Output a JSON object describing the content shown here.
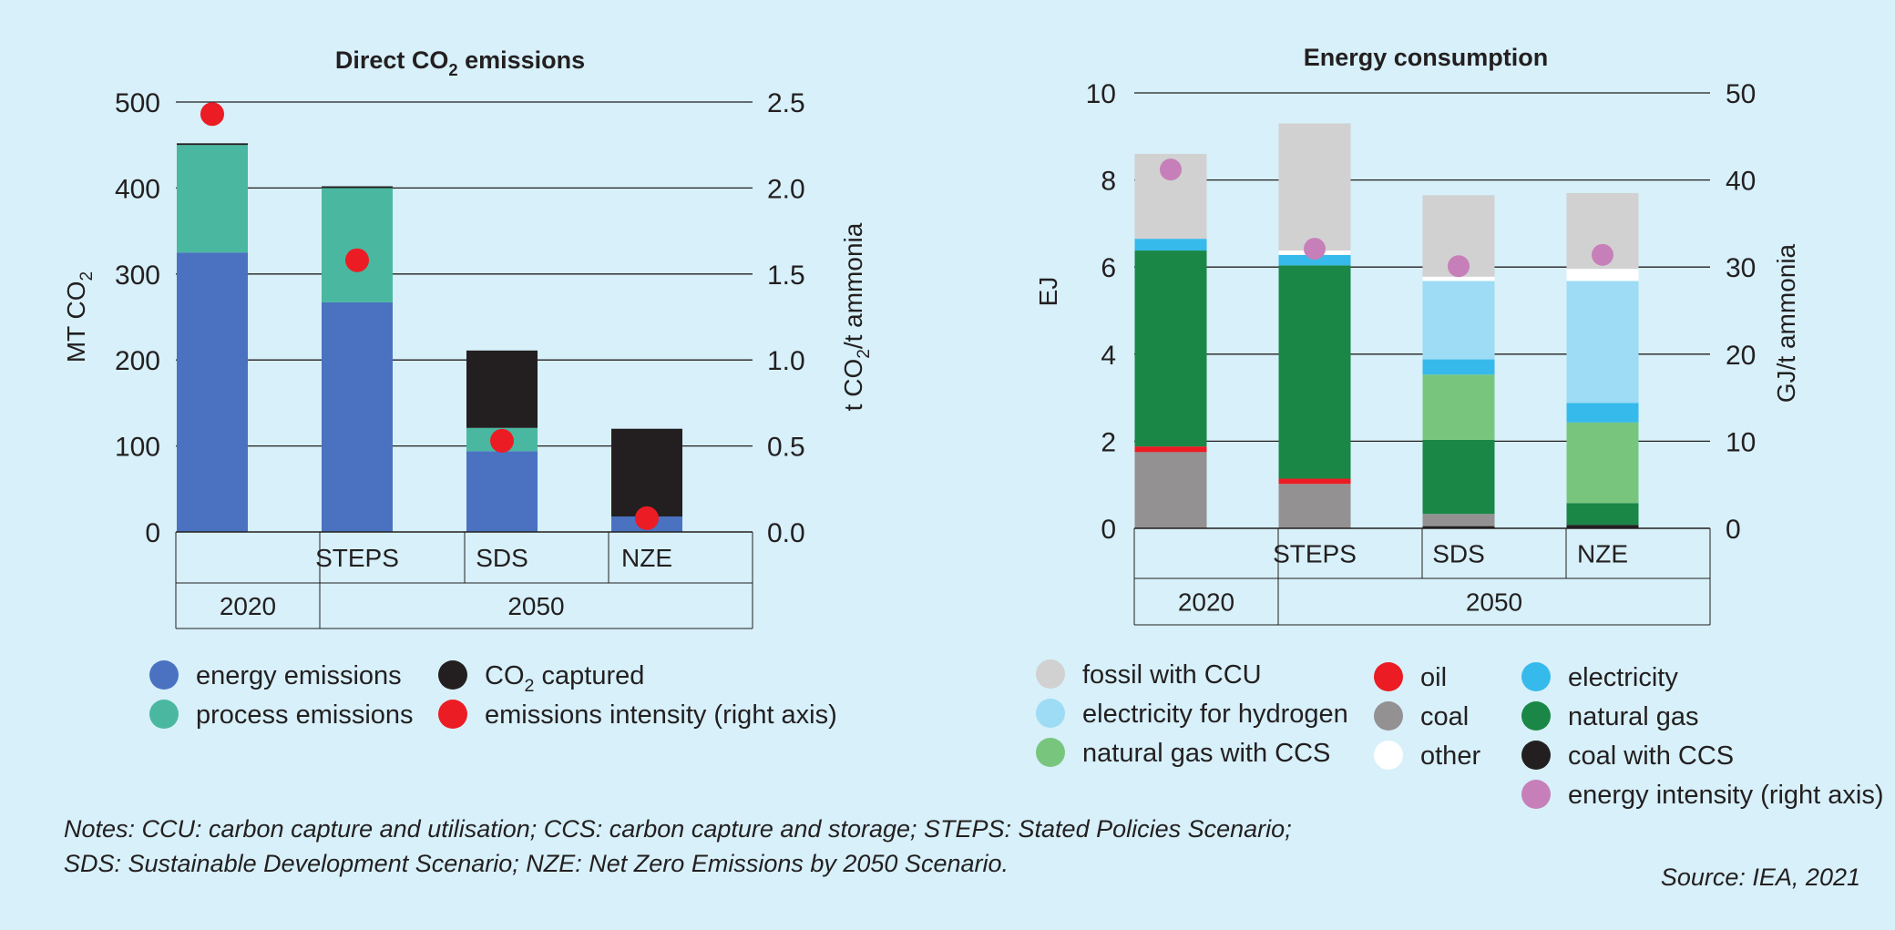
{
  "chart_data": [
    {
      "type": "bar",
      "title": "Direct CO2 emissions",
      "title_parts": {
        "main": "Direct CO",
        "sub": "2",
        "tail": " emissions"
      },
      "ylabel": "MT CO2",
      "ylabel_parts": {
        "main": "MT CO",
        "sub": "2"
      },
      "ylim": [
        0,
        500
      ],
      "yticks": [
        0,
        100,
        200,
        300,
        400,
        500
      ],
      "y2label": "t CO2/t ammonia",
      "y2label_parts": {
        "main": "t CO",
        "sub": "2",
        "tail": "/t ammonia"
      },
      "y2lim": [
        0,
        2.5
      ],
      "y2ticks": [
        "0.0",
        "0.5",
        "1.0",
        "1.5",
        "2.0",
        "2.5"
      ],
      "categories": [
        "",
        "STEPS",
        "SDS",
        "NZE"
      ],
      "groups": [
        {
          "label": "2020",
          "span": 1
        },
        {
          "label": "2050",
          "span": 3
        }
      ],
      "stacked": true,
      "series": [
        {
          "name": "energy emissions",
          "color": "#4a72c1",
          "values": [
            325,
            267,
            94,
            18
          ]
        },
        {
          "name": "process emissions",
          "color": "#4ab8a0",
          "values": [
            125,
            133,
            27,
            0
          ]
        },
        {
          "name": "CO2 captured",
          "color": "#231f20",
          "values": [
            2,
            2,
            90,
            102
          ]
        }
      ],
      "markers": {
        "name": "emissions intensity (right axis)",
        "color": "#ec1c24",
        "axis": "right",
        "values": [
          2.43,
          1.58,
          0.53,
          0.08
        ]
      },
      "legend": [
        {
          "label": "energy emissions",
          "color": "#4a72c1"
        },
        {
          "label": "process emissions",
          "color": "#4ab8a0"
        },
        {
          "label": "CO2 captured",
          "main": "CO",
          "sub": "2",
          "tail": " captured",
          "color": "#231f20"
        },
        {
          "label": "emissions intensity (right axis)",
          "color": "#ec1c24"
        }
      ],
      "grid": true
    },
    {
      "type": "bar",
      "title": "Energy consumption",
      "ylabel": "EJ",
      "ylim": [
        0,
        10
      ],
      "yticks": [
        0,
        2,
        4,
        6,
        8,
        10
      ],
      "y2label": "GJ/t ammonia",
      "y2lim": [
        0,
        50
      ],
      "y2ticks": [
        "0",
        "10",
        "20",
        "30",
        "40",
        "50"
      ],
      "categories": [
        "",
        "STEPS",
        "SDS",
        "NZE"
      ],
      "groups": [
        {
          "label": "2020",
          "span": 1
        },
        {
          "label": "2050",
          "span": 3
        }
      ],
      "stacked": true,
      "series": [
        {
          "name": "coal with CCS",
          "color": "#231f20",
          "values": [
            0,
            0,
            0.05,
            0.08
          ]
        },
        {
          "name": "coal",
          "color": "#939191",
          "values": [
            1.75,
            1.02,
            0.28,
            0.0
          ]
        },
        {
          "name": "oil",
          "color": "#ec1c24",
          "values": [
            0.13,
            0.12,
            0,
            0
          ]
        },
        {
          "name": "natural gas",
          "color": "#1a8747",
          "values": [
            4.5,
            4.9,
            1.7,
            0.5
          ]
        },
        {
          "name": "natural gas with CCS",
          "color": "#78c67e",
          "values": [
            0,
            0,
            1.5,
            1.85
          ]
        },
        {
          "name": "electricity",
          "color": "#36baeb",
          "values": [
            0.27,
            0.24,
            0.35,
            0.45
          ]
        },
        {
          "name": "electricity for hydrogen",
          "color": "#9ddcf4",
          "values": [
            0,
            0,
            1.8,
            2.8
          ]
        },
        {
          "name": "other",
          "color": "#ffffff",
          "values": [
            0,
            0.1,
            0.1,
            0.28
          ]
        },
        {
          "name": "fossil with CCU",
          "color": "#d1d1d1",
          "values": [
            1.95,
            2.92,
            1.87,
            1.74
          ]
        }
      ],
      "markers": {
        "name": "energy intensity (right axis)",
        "color": "#c77fb9",
        "axis": "right",
        "values": [
          41.2,
          32.1,
          30.1,
          31.4
        ]
      },
      "legend": [
        {
          "label": "fossil with CCU",
          "color": "#d1d1d1"
        },
        {
          "label": "electricity for hydrogen",
          "color": "#9ddcf4"
        },
        {
          "label": "natural gas with CCS",
          "color": "#78c67e"
        },
        {
          "label": "oil",
          "color": "#ec1c24"
        },
        {
          "label": "coal",
          "color": "#939191"
        },
        {
          "label": "other",
          "color": "#ffffff"
        },
        {
          "label": "electricity",
          "color": "#36baeb"
        },
        {
          "label": "natural gas",
          "color": "#1a8747"
        },
        {
          "label": "coal with CCS",
          "color": "#231f20"
        },
        {
          "label": "energy intensity (right axis)",
          "color": "#c77fb9"
        }
      ],
      "grid": true
    }
  ],
  "notes": {
    "line1": "Notes: CCU: carbon capture and utilisation; CCS: carbon capture and storage; STEPS: Stated Policies Scenario;",
    "line2": "SDS: Sustainable Development Scenario; NZE: Net Zero Emissions by 2050 Scenario."
  },
  "source": "Source: IEA, 2021"
}
